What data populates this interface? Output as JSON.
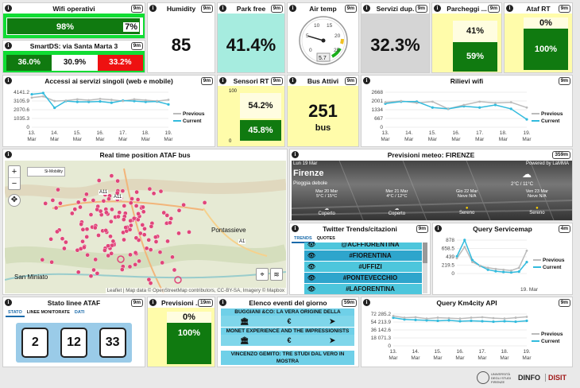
{
  "wifi": {
    "title": "Wifi operativi",
    "time": "9m",
    "value": "98%",
    "value2": "7%"
  },
  "smartds": {
    "title": "SmartDS: via Santa Marta 3",
    "time": "9m",
    "v1": "36.0%",
    "v2": "30.9%",
    "v3": "33.2%"
  },
  "humidity": {
    "title": "Humidity",
    "time": "9m",
    "value": "85"
  },
  "park": {
    "title": "Park free",
    "time": "9m",
    "value": "41.4%"
  },
  "airtemp": {
    "title": "Air temp",
    "time": "9m",
    "value": "5.7",
    "ticks": [
      "0",
      "5",
      "10",
      "15",
      "20",
      "25"
    ]
  },
  "servizi": {
    "title": "Servizi dup.",
    "time": "9m",
    "value": "32.3%"
  },
  "parcheggi": {
    "title": "Parcheggi ...",
    "time": "9m",
    "top": "41%",
    "bottom": "59%"
  },
  "atafrt": {
    "title": "Ataf RT",
    "time": "9m",
    "top": "0%",
    "bottom": "100%"
  },
  "accessi": {
    "title": "Accessi ai servizi singoli (web e mobile)",
    "time": "9m",
    "yticks": [
      "4141.2",
      "3105.9",
      "2070.6",
      "1035.3",
      "0"
    ],
    "xticks": [
      "13.",
      "14.",
      "15.",
      "16.",
      "17.",
      "18.",
      "19."
    ],
    "xmonth": "Mar",
    "legend": [
      "Previous",
      "Current"
    ]
  },
  "sensori": {
    "title": "Sensori RT",
    "time": "9m",
    "ymax": "100",
    "ymin": "0",
    "top": "54.2%",
    "bottom": "45.8%"
  },
  "bus": {
    "title": "Bus Attivi",
    "time": "9m",
    "value": "251",
    "unit": "bus"
  },
  "rilievi": {
    "title": "Rilievi wifi",
    "time": "9m",
    "yticks": [
      "2668",
      "2001",
      "1334",
      "667",
      "0"
    ],
    "xticks": [
      "13.",
      "14.",
      "15.",
      "16.",
      "17.",
      "18.",
      "19."
    ],
    "xmonth": "Mar",
    "legend": [
      "Previous",
      "Current"
    ]
  },
  "map": {
    "title": "Real time position ATAF bus",
    "labels": [
      "Pontassieve",
      "San Miniato",
      "A11",
      "A11",
      "A1",
      "Si-Mobility"
    ],
    "zoom_in": "+",
    "zoom_out": "−",
    "attribution": "Leaflet | Map data © OpenStreetMap contributors, CC-BY-SA, Imagery © Mapbox"
  },
  "meteo": {
    "title": "Previsioni meteo: FIRENZE",
    "time": "359m",
    "date": "Lun 19 Mar",
    "powered": "Powered by LaMMA",
    "city": "Firenze",
    "cond": "Pioggia debole",
    "temp": "2°C / 11°C",
    "days": [
      {
        "d": "Mar 20 Mar",
        "t": "5°C / 15°C",
        "s": "Coperto"
      },
      {
        "d": "Mer 21 Mar",
        "t": "4°C / 12°C",
        "s": "Coperto"
      },
      {
        "d": "Gio 22 Mar",
        "t": "Neve N/A",
        "s": "Sereno"
      },
      {
        "d": "Ven 23 Mar",
        "t": "Neve N/A",
        "s": "Sereno"
      }
    ]
  },
  "twitter": {
    "title": "Twitter Trends/citazioni",
    "time": "9m",
    "tabs": [
      "TRENDS",
      "QUOTES"
    ],
    "items": [
      "@ACFFIORENTINA",
      "#FIORENTINA",
      "#UFFIZI",
      "#PONTEVECCHIO",
      "#LAFORENTINA"
    ]
  },
  "query_sm": {
    "title": "Query Servicemap",
    "time": "4m",
    "yticks": [
      "878",
      "658.5",
      "439",
      "219.5",
      "0"
    ],
    "xtick": "19. Mar",
    "legend": [
      "Previous",
      "Current"
    ]
  },
  "linee": {
    "title": "Stato linee ATAF",
    "time": "9m",
    "tabs": [
      "STATO",
      "LINEE MONITORATE",
      "DATI"
    ],
    "buses": [
      "2",
      "12",
      "33"
    ]
  },
  "previsioni": {
    "title": "Previsioni ...",
    "time": "19m",
    "top": "0%",
    "bottom": "100%"
  },
  "eventi": {
    "title": "Elenco eventi del giorno",
    "time": "59m",
    "items": [
      "BUGGIANI &CO: LA VERA ORIGINE DELLA",
      "MONET EXPERIENCE AND THE IMPRESSIONISTS",
      "VINCENZO GEMITO: TRE STUDI DAL VERO IN MOSTRA"
    ],
    "euro": "€"
  },
  "km4city": {
    "title": "Query Km4city API",
    "time": "9m",
    "yticks": [
      "72 285.2",
      "54 213.9",
      "36 142.6",
      "18 071.3",
      "0"
    ],
    "xticks": [
      "13.",
      "14.",
      "15.",
      "16.",
      "17.",
      "18.",
      "19."
    ],
    "xmonth": "Mar",
    "legend": [
      "Previous",
      "Current"
    ]
  },
  "footer": {
    "unifi": "UNIVERSITÀ DEGLI STUDI FIRENZE",
    "dinfo": "DINFO",
    "disit": "DISIT"
  },
  "colors": {
    "prev": "#bbbbbb",
    "curr": "#33bbdd",
    "green": "#107a10",
    "yellow": "#fffcaa",
    "cyan": "#a6ecdf",
    "gray": "#cfcfcf"
  }
}
